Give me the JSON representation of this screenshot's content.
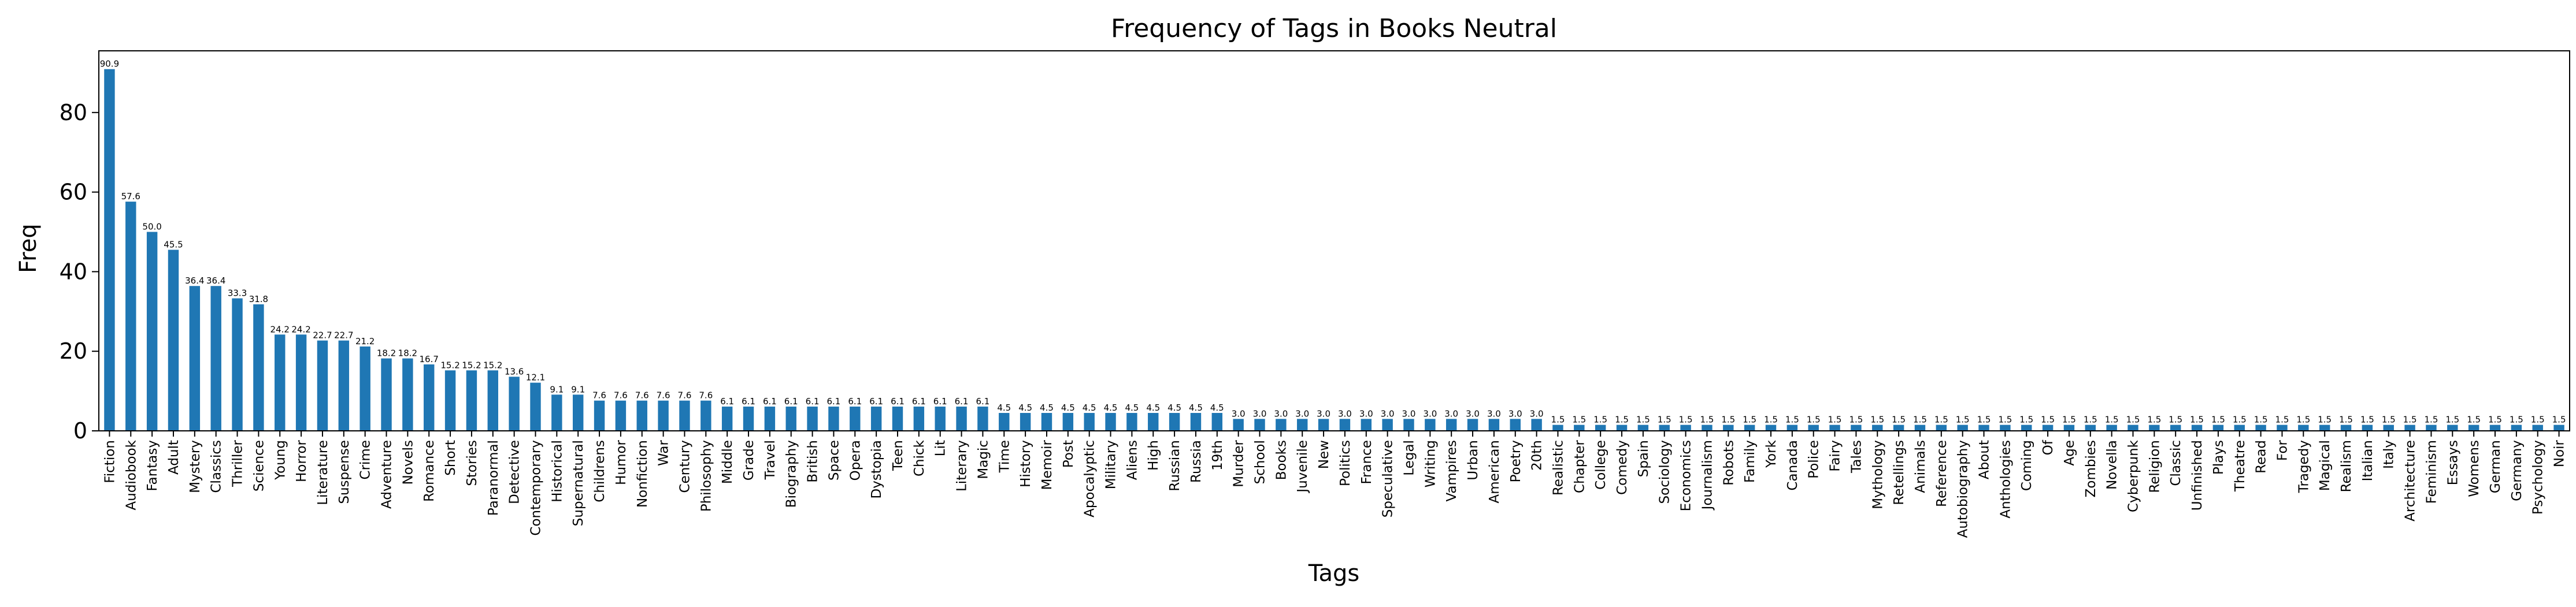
{
  "chart_data": {
    "type": "bar",
    "title": "Frequency of Tags in Books Neutral",
    "xlabel": "Tags",
    "ylabel": "Freq",
    "ylim": [
      0,
      95.5
    ],
    "yticks": [
      0,
      20,
      40,
      60,
      80
    ],
    "grid": false,
    "bar_color": "#1f77b4",
    "categories": [
      "Fiction",
      "Audiobook",
      "Fantasy",
      "Adult",
      "Mystery",
      "Classics",
      "Thriller",
      "Science",
      "Young",
      "Horror",
      "Literature",
      "Suspense",
      "Crime",
      "Adventure",
      "Novels",
      "Romance",
      "Short",
      "Stories",
      "Paranormal",
      "Detective",
      "Contemporary",
      "Historical",
      "Supernatural",
      "Childrens",
      "Humor",
      "Nonfiction",
      "War",
      "Century",
      "Philosophy",
      "Middle",
      "Grade",
      "Travel",
      "Biography",
      "British",
      "Space",
      "Opera",
      "Dystopia",
      "Teen",
      "Chick",
      "Lit",
      "Literary",
      "Magic",
      "Time",
      "History",
      "Memoir",
      "Post",
      "Apocalyptic",
      "Military",
      "Aliens",
      "High",
      "Russian",
      "Russia",
      "19th",
      "Murder",
      "School",
      "Books",
      "Juvenile",
      "New",
      "Politics",
      "France",
      "Speculative",
      "Legal",
      "Writing",
      "Vampires",
      "Urban",
      "American",
      "Poetry",
      "20th",
      "Realistic",
      "Chapter",
      "College",
      "Comedy",
      "Spain",
      "Sociology",
      "Economics",
      "Journalism",
      "Robots",
      "Family",
      "York",
      "Canada",
      "Police",
      "Fairy",
      "Tales",
      "Mythology",
      "Retellings",
      "Animals",
      "Reference",
      "Autobiography",
      "About",
      "Anthologies",
      "Coming",
      "Of",
      "Age",
      "Zombies",
      "Novella",
      "Cyberpunk",
      "Religion",
      "Classic",
      "Unfinished",
      "Plays",
      "Theatre",
      "Read",
      "For",
      "Tragedy",
      "Magical",
      "Realism",
      "Italian",
      "Italy",
      "Architecture",
      "Feminism",
      "Essays",
      "Womens",
      "German",
      "Germany",
      "Psychology",
      "Noir"
    ],
    "values": [
      90.9,
      57.6,
      50.0,
      45.5,
      36.4,
      36.4,
      33.3,
      31.8,
      24.2,
      24.2,
      22.7,
      22.7,
      21.2,
      18.2,
      18.2,
      16.7,
      15.2,
      15.2,
      15.2,
      13.6,
      12.1,
      9.1,
      9.1,
      7.6,
      7.6,
      7.6,
      7.6,
      7.6,
      7.6,
      6.1,
      6.1,
      6.1,
      6.1,
      6.1,
      6.1,
      6.1,
      6.1,
      6.1,
      6.1,
      6.1,
      6.1,
      6.1,
      4.5,
      4.5,
      4.5,
      4.5,
      4.5,
      4.5,
      4.5,
      4.5,
      4.5,
      4.5,
      4.5,
      3.0,
      3.0,
      3.0,
      3.0,
      3.0,
      3.0,
      3.0,
      3.0,
      3.0,
      3.0,
      3.0,
      3.0,
      3.0,
      3.0,
      3.0,
      1.5,
      1.5,
      1.5,
      1.5,
      1.5,
      1.5,
      1.5,
      1.5,
      1.5,
      1.5,
      1.5,
      1.5,
      1.5,
      1.5,
      1.5,
      1.5,
      1.5,
      1.5,
      1.5,
      1.5,
      1.5,
      1.5,
      1.5,
      1.5,
      1.5,
      1.5,
      1.5,
      1.5,
      1.5,
      1.5,
      1.5,
      1.5,
      1.5,
      1.5,
      1.5,
      1.5,
      1.5,
      1.5,
      1.5,
      1.5,
      1.5,
      1.5,
      1.5,
      1.5,
      1.5,
      1.5,
      1.5,
      1.5
    ],
    "data_labels": [
      "90.9",
      "57.6",
      "50.0",
      "45.5",
      "36.4",
      "36.4",
      "33.3",
      "31.8",
      "24.2",
      "24.2",
      "22.7",
      "22.7",
      "21.2",
      "18.2",
      "18.2",
      "16.7",
      "15.2",
      "15.2",
      "15.2",
      "13.6",
      "12.1",
      "9.1",
      "9.1",
      "7.6",
      "7.6",
      "7.6",
      "7.6",
      "7.6",
      "7.6",
      "6.1",
      "6.1",
      "6.1",
      "6.1",
      "6.1",
      "6.1",
      "6.1",
      "6.1",
      "6.1",
      "6.1",
      "6.1",
      "6.1",
      "6.1",
      "4.5",
      "4.5",
      "4.5",
      "4.5",
      "4.5",
      "4.5",
      "4.5",
      "4.5",
      "4.5",
      "4.5",
      "4.5",
      "3.0",
      "3.0",
      "3.0",
      "3.0",
      "3.0",
      "3.0",
      "3.0",
      "3.0",
      "3.0",
      "3.0",
      "3.0",
      "3.0",
      "3.0",
      "3.0",
      "3.0",
      "1.5",
      "1.5",
      "1.5",
      "1.5",
      "1.5",
      "1.5",
      "1.5",
      "1.5",
      "1.5",
      "1.5",
      "1.5",
      "1.5",
      "1.5",
      "1.5",
      "1.5",
      "1.5",
      "1.5",
      "1.5",
      "1.5",
      "1.5",
      "1.5",
      "1.5",
      "1.5",
      "1.5",
      "1.5",
      "1.5",
      "1.5",
      "1.5",
      "1.5",
      "1.5",
      "1.5",
      "1.5",
      "1.5",
      "1.5",
      "1.5",
      "1.5",
      "1.5",
      "1.5",
      "1.5",
      "1.5",
      "1.5",
      "1.5",
      "1.5",
      "1.5",
      "1.5",
      "1.5",
      "1.5",
      "1.5"
    ]
  }
}
